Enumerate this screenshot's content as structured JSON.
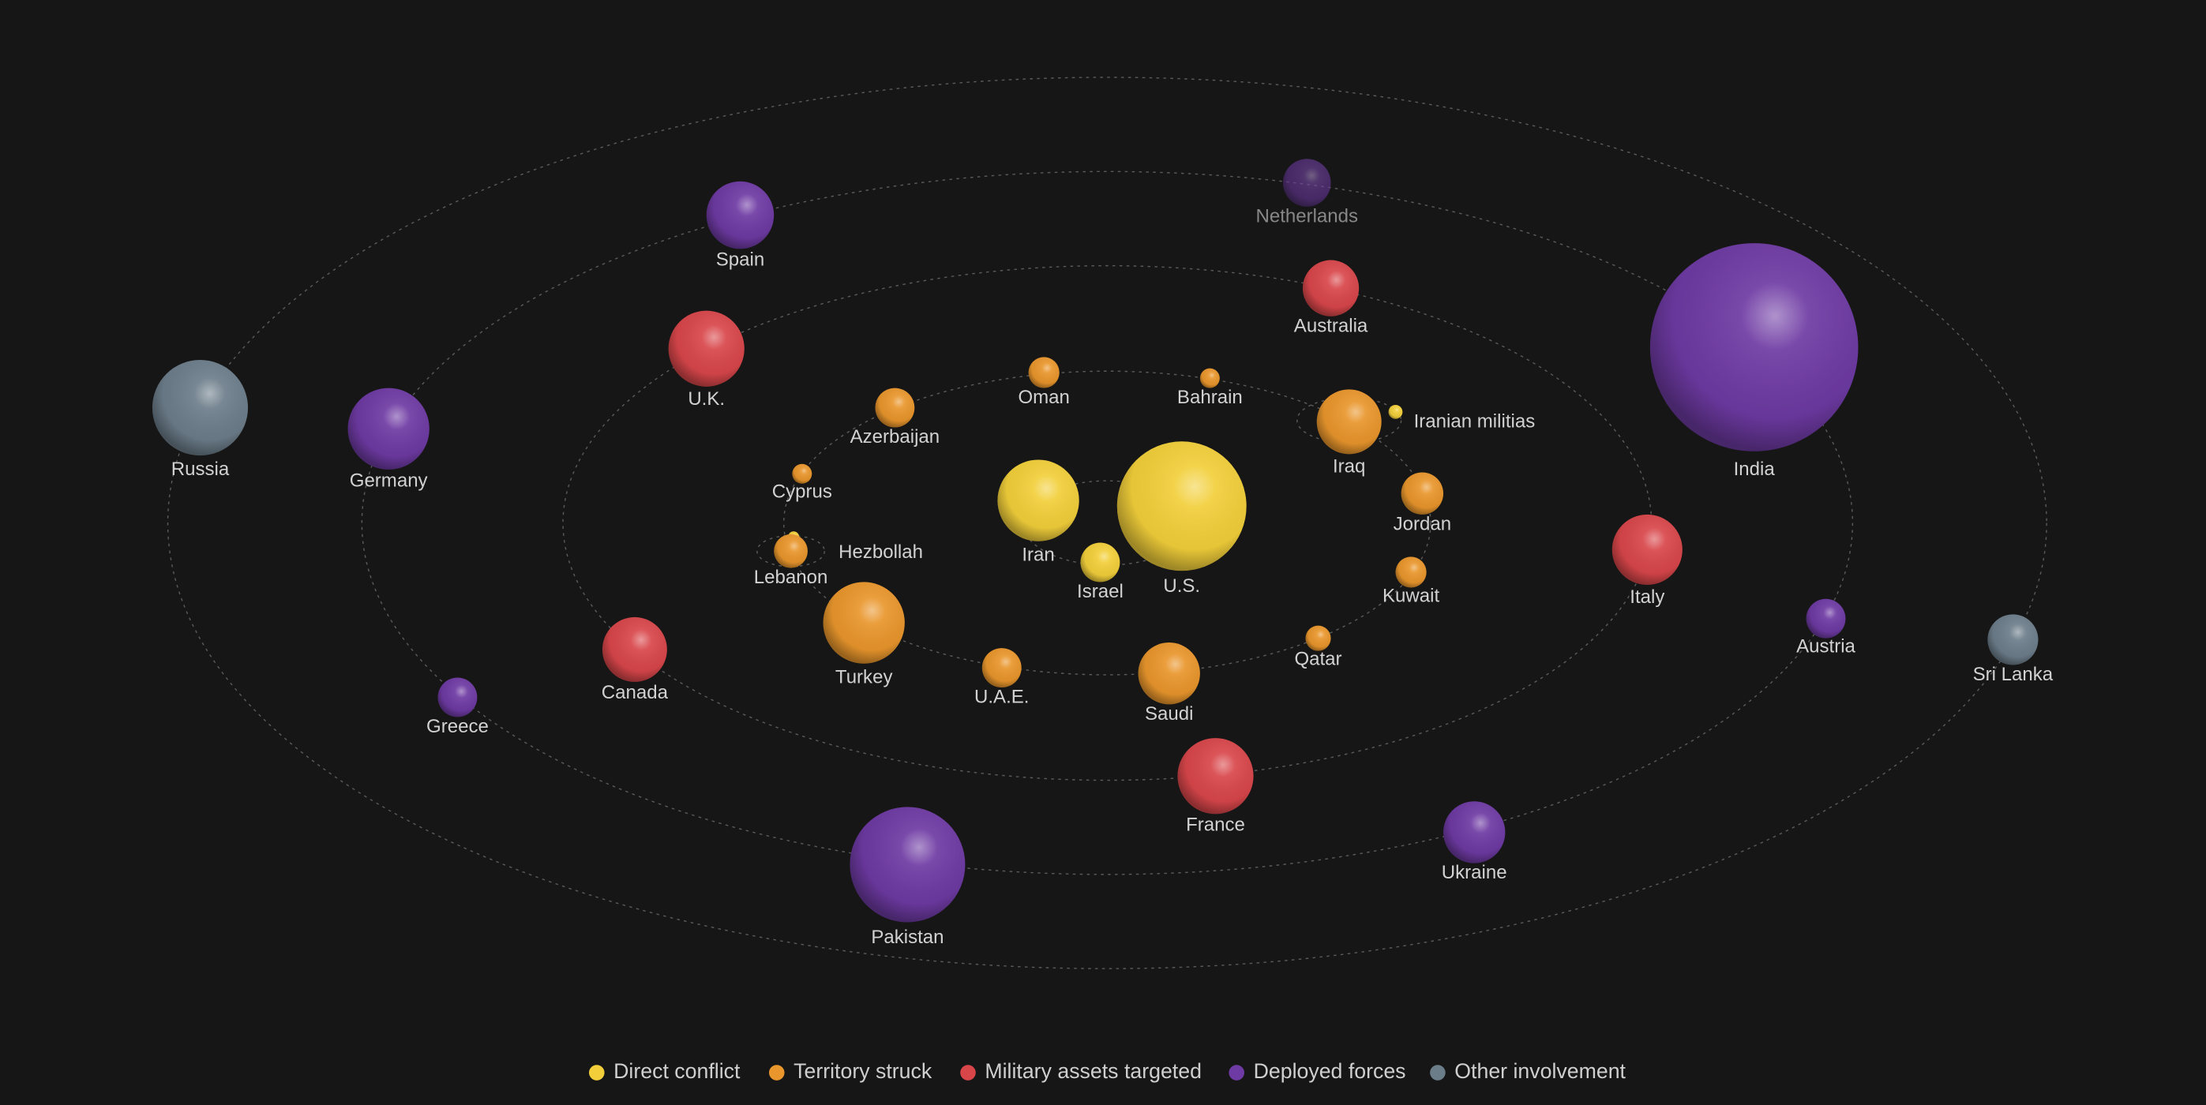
{
  "legend": [
    {
      "label": "Direct conflict",
      "color": "#f2cf3a",
      "members": [
        {
          "label": "Iran"
        },
        {
          "label": "U.S."
        },
        {
          "label": "Israel"
        },
        {
          "label": "Iranian militias"
        },
        {
          "label": "Hezbollah"
        }
      ]
    },
    {
      "label": "Territory struck",
      "color": "#e9962c",
      "members": [
        {
          "label": "Oman"
        },
        {
          "label": "Bahrain"
        },
        {
          "label": "Azerbaijan"
        },
        {
          "label": "Iraq"
        },
        {
          "label": "Cyprus"
        },
        {
          "label": "Jordan"
        },
        {
          "label": "Lebanon"
        },
        {
          "label": "Kuwait"
        },
        {
          "label": "Turkey"
        },
        {
          "label": "Qatar"
        },
        {
          "label": "U.A.E."
        },
        {
          "label": "Saudi"
        }
      ]
    },
    {
      "label": "Military assets targeted",
      "color": "#d8464a",
      "members": [
        {
          "label": "Australia"
        },
        {
          "label": "U.K."
        },
        {
          "label": "Italy"
        },
        {
          "label": "Canada"
        },
        {
          "label": "France"
        }
      ]
    },
    {
      "label": "Deployed forces",
      "color": "#6e3aa3",
      "members": [
        {
          "label": "Netherlands"
        },
        {
          "label": "Spain"
        },
        {
          "label": "India"
        },
        {
          "label": "Germany"
        },
        {
          "label": "Austria"
        },
        {
          "label": "Greece"
        },
        {
          "label": "Ukraine"
        },
        {
          "label": "Pakistan"
        }
      ]
    },
    {
      "label": "Other involvement",
      "color": "#6c7d8a",
      "members": [
        {
          "label": "Russia"
        },
        {
          "label": "Sri Lanka"
        }
      ]
    }
  ]
}
